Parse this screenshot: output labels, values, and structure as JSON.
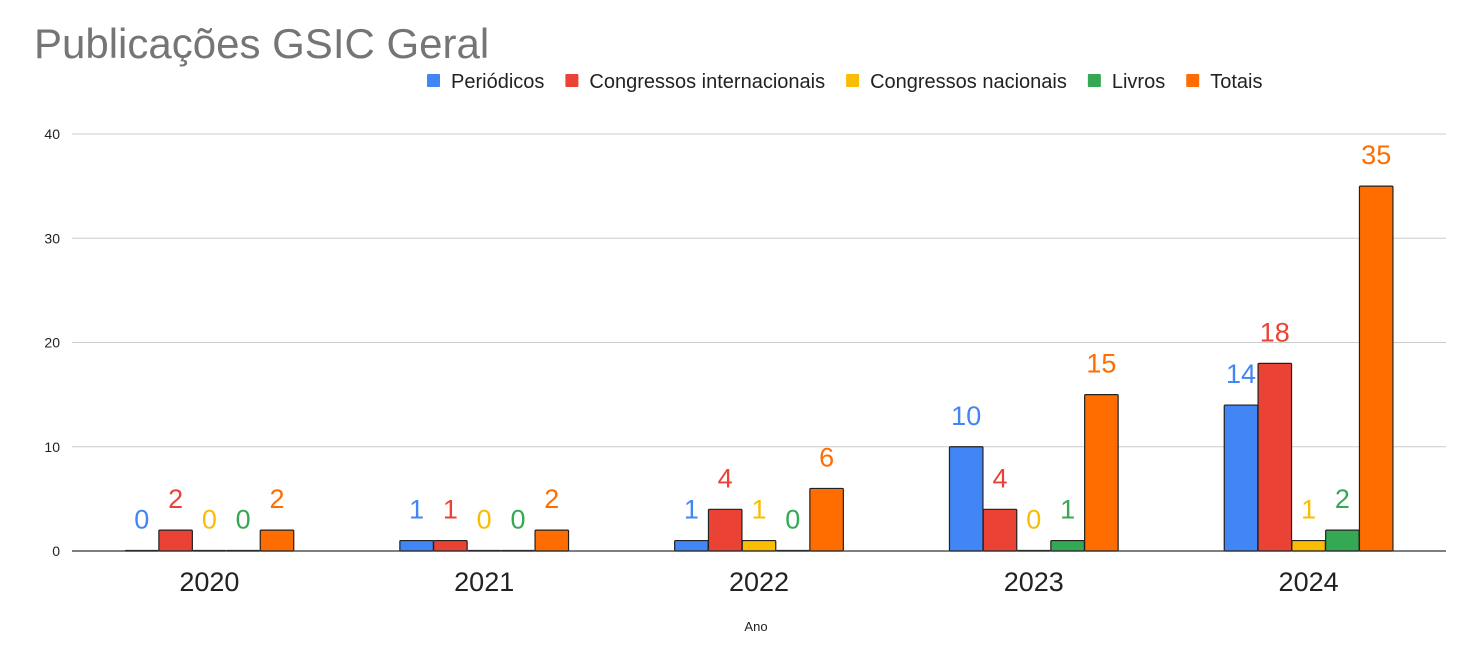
{
  "chart_data": {
    "type": "bar",
    "title": "Publicações GSIC Geral",
    "xlabel": "Ano",
    "ylabel": "",
    "ylim": [
      0,
      40
    ],
    "yticks": [
      0,
      10,
      20,
      30,
      40
    ],
    "grid": true,
    "legend_position": "top",
    "categories": [
      "2020",
      "2021",
      "2022",
      "2023",
      "2024"
    ],
    "series": [
      {
        "name": "Periódicos",
        "color": "#4285f4",
        "values": [
          0,
          1,
          1,
          10,
          14
        ]
      },
      {
        "name": "Congressos internacionais",
        "color": "#ea4335",
        "values": [
          2,
          1,
          4,
          4,
          18
        ]
      },
      {
        "name": "Congressos nacionais",
        "color": "#fbbc04",
        "values": [
          0,
          0,
          1,
          0,
          1
        ]
      },
      {
        "name": "Livros",
        "color": "#34a853",
        "values": [
          0,
          0,
          0,
          1,
          2
        ]
      },
      {
        "name": "Totais",
        "color": "#ff6d01",
        "values": [
          2,
          2,
          6,
          15,
          35
        ]
      }
    ]
  }
}
